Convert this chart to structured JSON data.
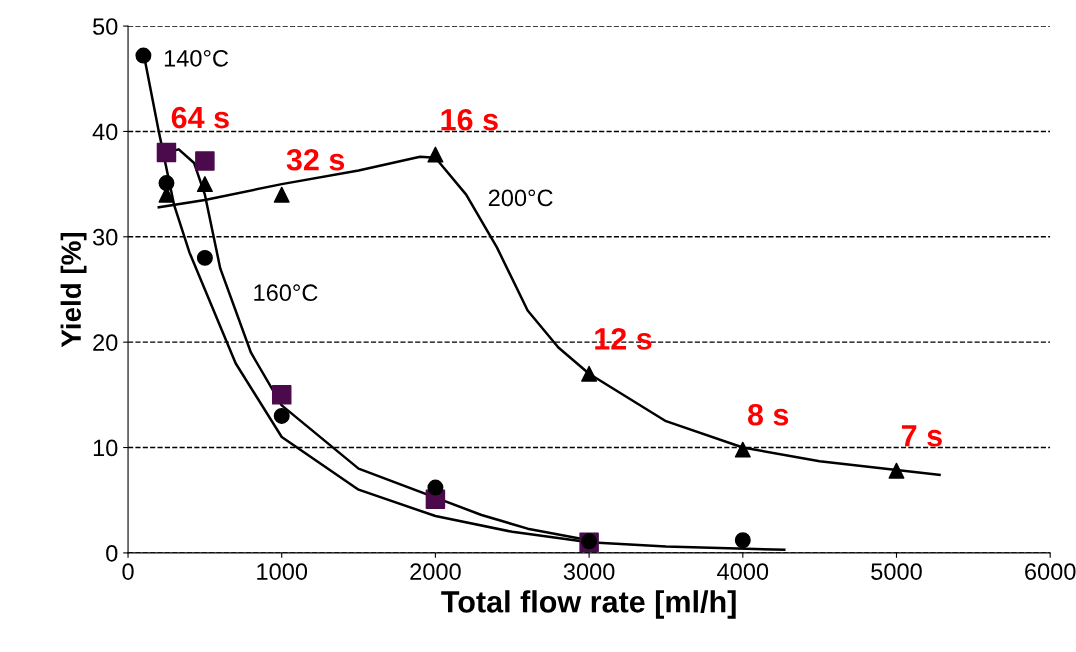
{
  "chart_data": {
    "type": "scatter",
    "xlabel": "Total flow rate [ml/h]",
    "ylabel": "Yield [%]",
    "xlim": [
      0,
      6000
    ],
    "xticks": [
      0,
      1000,
      2000,
      3000,
      4000,
      5000,
      6000
    ],
    "ylim": [
      0,
      50
    ],
    "yticks": [
      0,
      10,
      20,
      30,
      40,
      50
    ],
    "grid": "y",
    "legend": false,
    "series": [
      {
        "marker": "circle",
        "color": "#000000",
        "x": [
          100,
          250,
          500,
          1000,
          2000,
          3000,
          4000
        ],
        "values": [
          47.2,
          35.1,
          28,
          13,
          6.2,
          1.1,
          1.2
        ]
      },
      {
        "marker": "square",
        "color": "#4b0a4b",
        "x": [
          250,
          500,
          1000,
          2000,
          3000
        ],
        "values": [
          38,
          37.2,
          15,
          5.1,
          1.0
        ]
      },
      {
        "marker": "triangle",
        "color": "#000000",
        "x": [
          250,
          500,
          1000,
          2000,
          3000,
          4000,
          5000
        ],
        "values": [
          34,
          35,
          34,
          37.8,
          17,
          9.8,
          7.8
        ]
      },
      {
        "type": "line",
        "color": "#000000",
        "x": [
          100,
          200,
          300,
          400,
          500,
          700,
          1000,
          1500,
          2000,
          2500,
          3000,
          3500,
          4270
        ],
        "values": [
          47.5,
          40,
          33,
          28.5,
          25,
          18,
          11,
          6,
          3.5,
          2,
          1,
          0.6,
          0.3
        ]
      },
      {
        "type": "line",
        "color": "#000000",
        "x": [
          250,
          330,
          430,
          500,
          600,
          800,
          1000,
          1500,
          2300,
          2600,
          3000
        ],
        "values": [
          38,
          38.3,
          37,
          34,
          27,
          19,
          14,
          8,
          3.6,
          2.3,
          1.2
        ]
      },
      {
        "type": "line",
        "color": "#000000",
        "x": [
          200,
          500,
          1000,
          1500,
          1900,
          2000,
          2200,
          2400,
          2600,
          2800,
          3000,
          3500,
          4000,
          4500,
          5280
        ],
        "values": [
          32.8,
          33.5,
          35,
          36.3,
          37.6,
          37.5,
          34,
          29,
          23,
          19.5,
          17,
          12.5,
          10,
          8.7,
          7.4
        ]
      }
    ],
    "annotations": [
      "140°C",
      "160°C",
      "200°C",
      {
        "text": "64 s",
        "x": 250,
        "y": 38
      },
      {
        "text": "32 s",
        "x": 1000,
        "y": 34
      },
      {
        "text": "16 s",
        "x": 2000,
        "y": 37.8
      },
      {
        "text": "12 s",
        "x": 3000,
        "y": 17
      },
      {
        "text": "8 s",
        "x": 4000,
        "y": 9.8
      },
      {
        "text": "7 s",
        "x": 5000,
        "y": 7.8
      }
    ]
  }
}
